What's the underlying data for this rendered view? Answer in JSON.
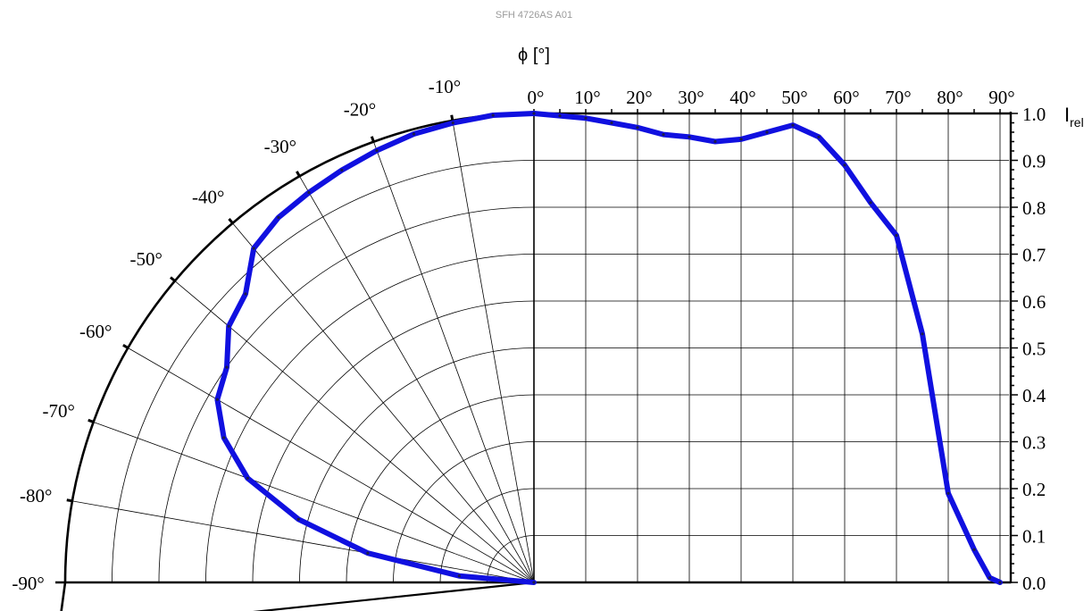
{
  "header": {
    "title": "SFH 4726AS A01"
  },
  "chart_data": {
    "type": "line",
    "title": "SFH 4726AS A01",
    "xlabel_symbol": "ϕ",
    "xlabel_unit": "[°]",
    "ylabel_main": "I",
    "ylabel_sub": "rel",
    "angle_tick_labels": [
      "-90°",
      "-80°",
      "-70°",
      "-60°",
      "-50°",
      "-40°",
      "-30°",
      "-20°",
      "-10°",
      "0°",
      "10°",
      "20°",
      "30°",
      "40°",
      "50°",
      "60°",
      "70°",
      "80°",
      "90°"
    ],
    "y_tick_labels": [
      "0.0",
      "0.1",
      "0.2",
      "0.3",
      "0.4",
      "0.5",
      "0.6",
      "0.7",
      "0.8",
      "0.9",
      "1.0"
    ],
    "xlim": [
      -90,
      90
    ],
    "ylim": [
      0,
      1.0
    ],
    "grid": true,
    "series_color": "#1010e0",
    "series": [
      {
        "x": [
          -90,
          -85,
          -80,
          -75,
          -70,
          -65,
          -60,
          -55,
          -50,
          -45,
          -40,
          -35,
          -30,
          -25,
          -20,
          -15,
          -10,
          -5,
          0,
          5,
          10,
          15,
          20,
          25,
          30,
          35,
          40,
          45,
          50,
          55,
          60,
          65,
          70,
          75,
          80,
          85,
          88,
          90
        ],
        "values": [
          0.0,
          0.16,
          0.36,
          0.52,
          0.65,
          0.73,
          0.78,
          0.8,
          0.85,
          0.87,
          0.93,
          0.95,
          0.96,
          0.97,
          0.98,
          0.99,
          0.995,
          1.0,
          1.0,
          0.995,
          0.99,
          0.98,
          0.97,
          0.955,
          0.95,
          0.94,
          0.945,
          0.96,
          0.975,
          0.95,
          0.89,
          0.81,
          0.74,
          0.53,
          0.19,
          0.07,
          0.01,
          0.0
        ]
      }
    ]
  }
}
